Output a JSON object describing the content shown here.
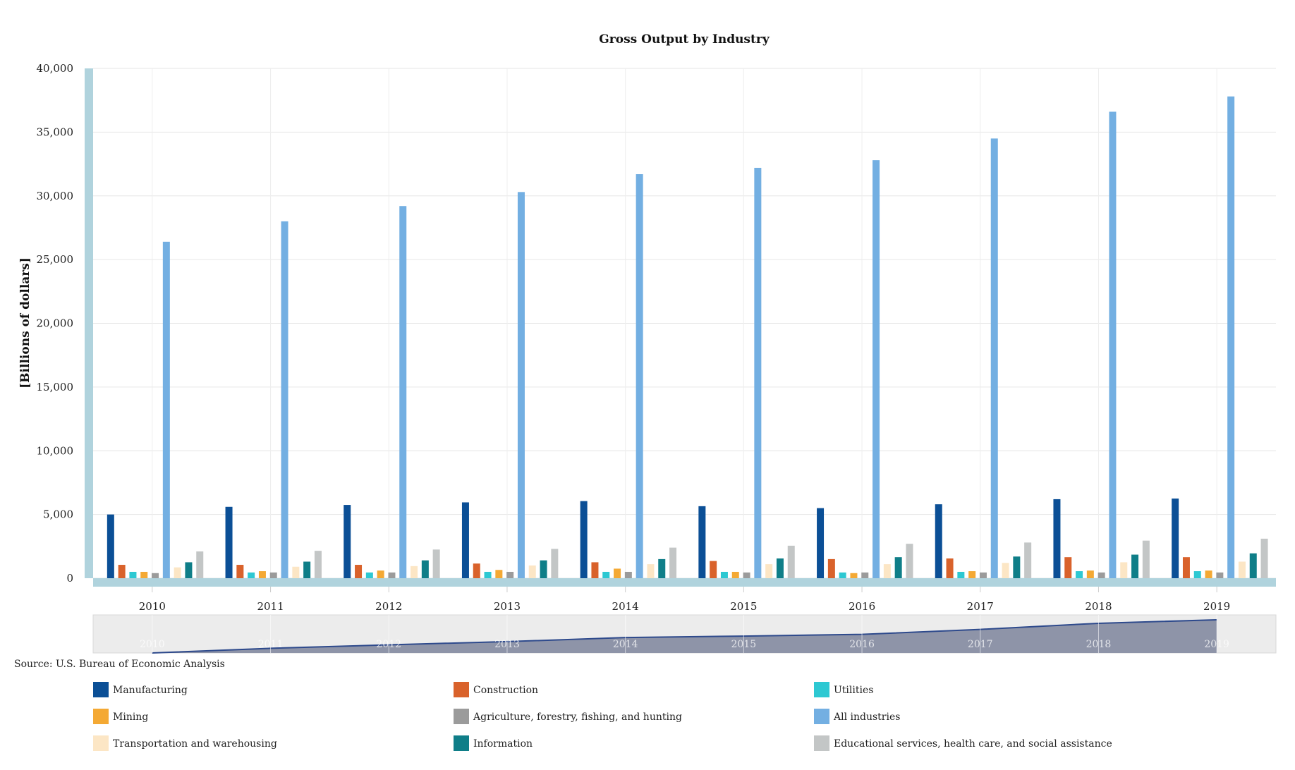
{
  "chart_data": {
    "type": "bar",
    "title": "Gross Output by Industry",
    "xlabel": "",
    "ylabel": "[Billions of dollars]",
    "ylim": [
      0,
      40000
    ],
    "yticks": [
      0,
      5000,
      10000,
      15000,
      20000,
      25000,
      30000,
      35000,
      40000
    ],
    "ytick_labels": [
      "0",
      "5,000",
      "10,000",
      "15,000",
      "20,000",
      "25,000",
      "30,000",
      "35,000",
      "40,000"
    ],
    "grid": true,
    "legend_position": "bottom",
    "categories": [
      "2010",
      "2011",
      "2012",
      "2013",
      "2014",
      "2015",
      "2016",
      "2017",
      "2018",
      "2019"
    ],
    "series": [
      {
        "name": "Manufacturing",
        "color": "#0B4F96",
        "values": [
          5000,
          5600,
          5750,
          5950,
          6050,
          5650,
          5500,
          5800,
          6200,
          6250
        ]
      },
      {
        "name": "Construction",
        "color": "#D9622B",
        "values": [
          1050,
          1050,
          1050,
          1150,
          1250,
          1350,
          1500,
          1550,
          1650,
          1650
        ]
      },
      {
        "name": "Utilities",
        "color": "#2DC8D2",
        "values": [
          500,
          450,
          450,
          500,
          500,
          500,
          450,
          500,
          550,
          550
        ]
      },
      {
        "name": "Mining",
        "color": "#F4A934",
        "values": [
          500,
          550,
          600,
          650,
          750,
          500,
          400,
          550,
          600,
          600
        ]
      },
      {
        "name": "Agriculture, forestry, fishing, and hunting",
        "color": "#9B9B9B",
        "values": [
          400,
          450,
          450,
          500,
          500,
          450,
          450,
          450,
          450,
          450
        ]
      },
      {
        "name": "All industries",
        "color": "#73AFE2",
        "values": [
          26400,
          28000,
          29200,
          30300,
          31700,
          32200,
          32800,
          34500,
          36600,
          37800
        ]
      },
      {
        "name": "Transportation and warehousing",
        "color": "#FCE6C5",
        "values": [
          850,
          900,
          950,
          1000,
          1100,
          1100,
          1100,
          1200,
          1250,
          1300
        ]
      },
      {
        "name": "Information",
        "color": "#0F7E88",
        "values": [
          1250,
          1300,
          1400,
          1400,
          1500,
          1550,
          1650,
          1700,
          1850,
          1950
        ]
      },
      {
        "name": "Educational services, health care, and social assistance",
        "color": "#C3C6C6",
        "values": [
          2100,
          2150,
          2250,
          2300,
          2400,
          2550,
          2700,
          2800,
          2950,
          3100
        ]
      }
    ],
    "navigator": {
      "categories": [
        "2010",
        "2011",
        "2012",
        "2013",
        "2014",
        "2015",
        "2016",
        "2017",
        "2018",
        "2019"
      ]
    }
  },
  "source": "Source: U.S. Bureau of Economic Analysis"
}
